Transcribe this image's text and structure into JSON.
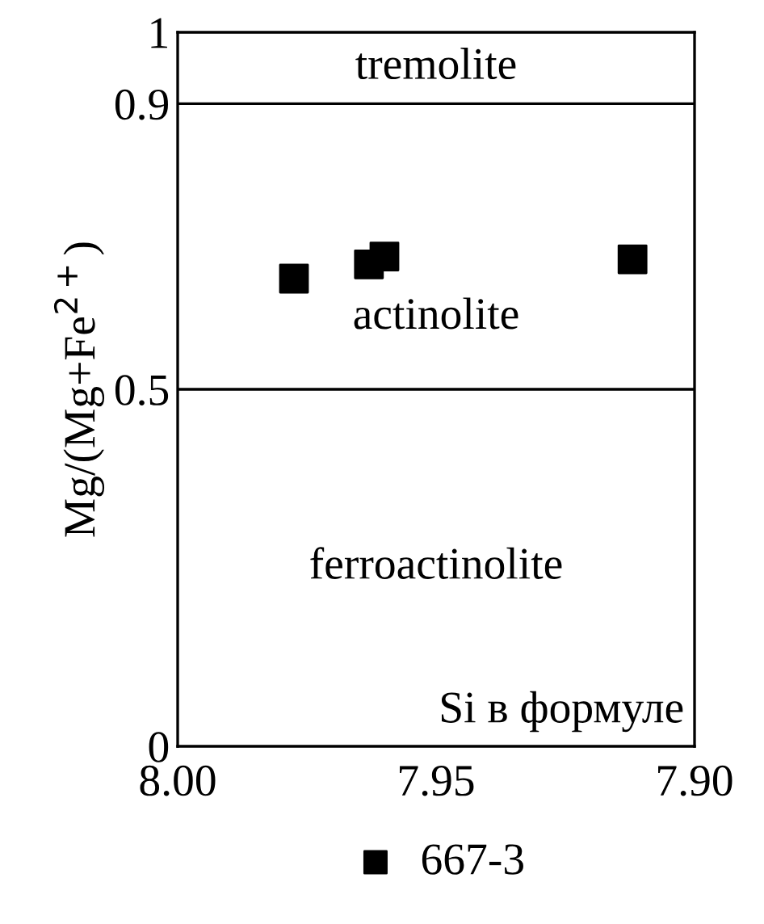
{
  "chart_data": {
    "type": "scatter",
    "xlabel": "Si в формуле",
    "ylabel": "Mg/(Mg+Fe$^{2+}$)",
    "xlim": [
      8.0,
      7.9
    ],
    "xticks": [
      {
        "value": 8.0,
        "label": "8.00"
      },
      {
        "value": 7.95,
        "label": "7.95"
      },
      {
        "value": 7.9,
        "label": "7.90"
      }
    ],
    "ylim": [
      0,
      1
    ],
    "yticks": [
      0,
      0.5,
      0.9,
      1
    ],
    "series": [
      {
        "name": "667-3",
        "color": "#000000",
        "x": [
          7.9775,
          7.963,
          7.96,
          7.912
        ],
        "values": [
          0.655,
          0.675,
          0.686,
          0.682
        ]
      }
    ],
    "ref_lines": [
      {
        "axis": "y",
        "value": 0.9,
        "color": "#000000"
      },
      {
        "axis": "y",
        "value": 0.5,
        "color": "#000000"
      }
    ],
    "annotations": [
      "tremolite",
      "actinolite",
      "ferroactinolite"
    ],
    "marker": "square",
    "legend": "bottom",
    "grid": false
  }
}
